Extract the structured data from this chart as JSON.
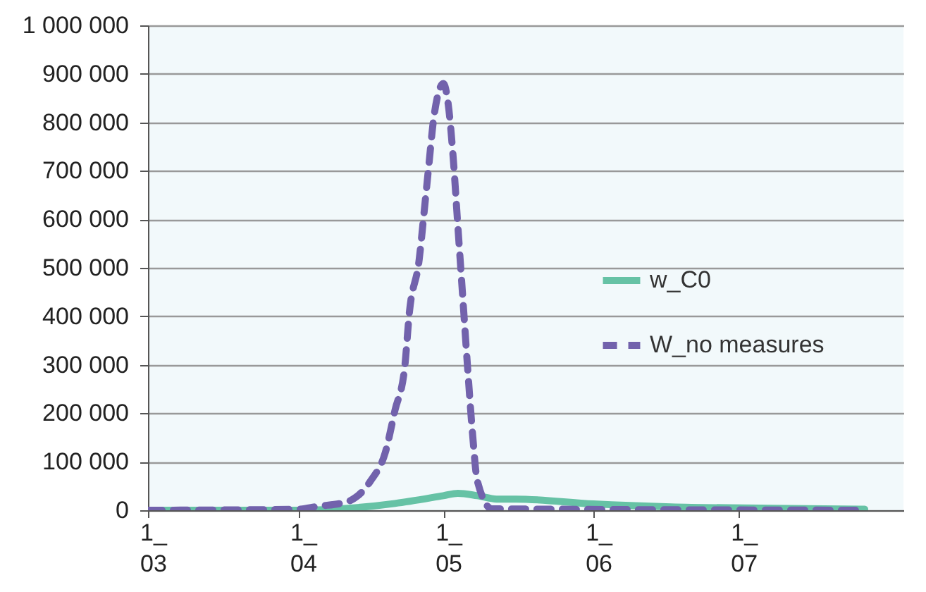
{
  "chart_data": {
    "type": "line",
    "xlim": [
      "--03-01",
      "--08-04"
    ],
    "xticks": [
      {
        "value": "--03-01",
        "label": "1_\n03"
      },
      {
        "value": "--04-01",
        "label": "1_\n04"
      },
      {
        "value": "--05-01",
        "label": "1_\n05"
      },
      {
        "value": "--06-01",
        "label": "1_\n06"
      },
      {
        "value": "--07-01",
        "label": "1_\n07"
      }
    ],
    "ylim": [
      0,
      1000000
    ],
    "yticks": [
      {
        "value": 0,
        "label": "0"
      },
      {
        "value": 100000,
        "label": "100 000"
      },
      {
        "value": 200000,
        "label": "200 000"
      },
      {
        "value": 300000,
        "label": "300 000"
      },
      {
        "value": 400000,
        "label": "400 000"
      },
      {
        "value": 500000,
        "label": "500 000"
      },
      {
        "value": 600000,
        "label": "600 000"
      },
      {
        "value": 700000,
        "label": "700 000"
      },
      {
        "value": 800000,
        "label": "800 000"
      },
      {
        "value": 900000,
        "label": "900 000"
      },
      {
        "value": 1000000,
        "label": "1 000 000"
      }
    ],
    "grid": "y",
    "legend": "right",
    "series": [
      {
        "name": "w_C0",
        "color": "#66c2a5",
        "line_style": "solid",
        "x": [
          "--03-01",
          "--04-01",
          "--04-08",
          "--04-21",
          "--05-01",
          "--05-04",
          "--05-08",
          "--05-12",
          "--05-16",
          "--06-01",
          "--06-17",
          "--07-08",
          "--07-27"
        ],
        "values": [
          0,
          0,
          2000,
          14000,
          30000,
          35000,
          30000,
          23000,
          23000,
          13000,
          7000,
          4000,
          2000
        ]
      },
      {
        "name": "W_no measures",
        "color": "#7262ac",
        "line_style": "dashed",
        "x": [
          "--03-01",
          "--04-01",
          "--04-05",
          "--04-11",
          "--04-16",
          "--04-19",
          "--04-21",
          "--04-23",
          "--04-24",
          "--04-26",
          "--04-27",
          "--04-28",
          "--04-29",
          "--05-01",
          "--05-02",
          "--05-03",
          "--05-04",
          "--05-05",
          "--05-06",
          "--05-07",
          "--05-08",
          "--05-11",
          "--07-27"
        ],
        "values": [
          0,
          2000,
          8000,
          17000,
          61000,
          119000,
          206000,
          294000,
          410000,
          517000,
          613000,
          712000,
          808000,
          880000,
          837000,
          730000,
          584000,
          439000,
          294000,
          160000,
          61000,
          3000,
          0
        ]
      }
    ]
  }
}
